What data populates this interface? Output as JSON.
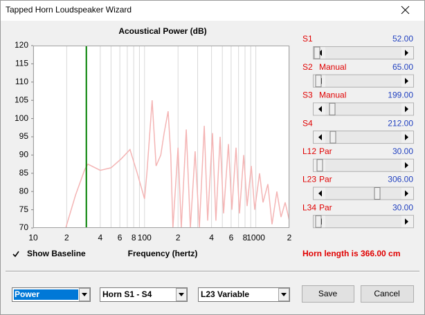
{
  "window": {
    "title": "Tapped Horn Loudspeaker Wizard"
  },
  "chart_data": {
    "type": "line",
    "title": "Acoustical Power (dB)",
    "x_label": "Frequency (hertz)",
    "xlog": true,
    "xlim": [
      10,
      2000
    ],
    "xticks": [
      10,
      {
        "value": 20,
        "label": "2"
      },
      {
        "value": 40,
        "label": "4"
      },
      {
        "value": 60,
        "label": "6"
      },
      {
        "value": 80,
        "label": "8"
      },
      100,
      {
        "value": 200,
        "label": "2"
      },
      {
        "value": 400,
        "label": "4"
      },
      {
        "value": 600,
        "label": "6"
      },
      {
        "value": 800,
        "label": "8"
      },
      1000,
      {
        "value": 2000,
        "label": "2"
      }
    ],
    "x_minor_grid": [
      30,
      50,
      70,
      90,
      300,
      500,
      700,
      900
    ],
    "ylim": [
      70,
      120
    ],
    "yticks": [
      70,
      75,
      80,
      85,
      90,
      95,
      100,
      105,
      110,
      115,
      120
    ],
    "grid": "x",
    "color": "#f4b4b4",
    "marker": {
      "x": 30,
      "color": "#008000"
    },
    "x": [
      19.6,
      24,
      29,
      31,
      40,
      50,
      62,
      74,
      86,
      100,
      105,
      117,
      127,
      140,
      150,
      163,
      172,
      180,
      200,
      214,
      237,
      258,
      285,
      311,
      344,
      369,
      408,
      438,
      478,
      513,
      567,
      609,
      664,
      713,
      778,
      835,
      910,
      977,
      1081,
      1161,
      1283,
      1399,
      1545,
      1684,
      1836,
      2000
    ],
    "values": [
      70,
      79,
      86,
      87.5,
      85.8,
      86.5,
      89,
      91.5,
      85,
      78,
      85,
      105,
      87,
      90,
      96,
      102,
      90,
      70,
      92,
      70,
      97,
      70,
      91,
      70,
      98,
      72,
      96,
      72,
      95,
      74,
      93,
      75,
      92,
      74,
      90,
      76,
      87,
      75,
      85,
      77,
      82,
      71,
      80,
      73,
      77,
      72
    ]
  },
  "sliders": [
    {
      "label": "S1",
      "value": "52.00"
    },
    {
      "label": "S2",
      "mode": "Manual",
      "value": "65.00"
    },
    {
      "label": "S3",
      "mode": "Manual",
      "value": "199.00"
    },
    {
      "label": "S4",
      "value": "212.00"
    },
    {
      "label": "L12",
      "mode": "Par",
      "value": "30.00"
    },
    {
      "label": "L23",
      "mode": "Par",
      "value": "306.00"
    },
    {
      "label": "L34",
      "mode": "Par",
      "value": "30.00"
    }
  ],
  "checkbox": {
    "label": "Show Baseline",
    "checked": true
  },
  "horn_length": "Horn length is 366.00 cm",
  "dropdowns": [
    "Power",
    "Horn S1 - S4",
    "L23 Variable"
  ],
  "buttons": [
    "Save",
    "Cancel"
  ]
}
